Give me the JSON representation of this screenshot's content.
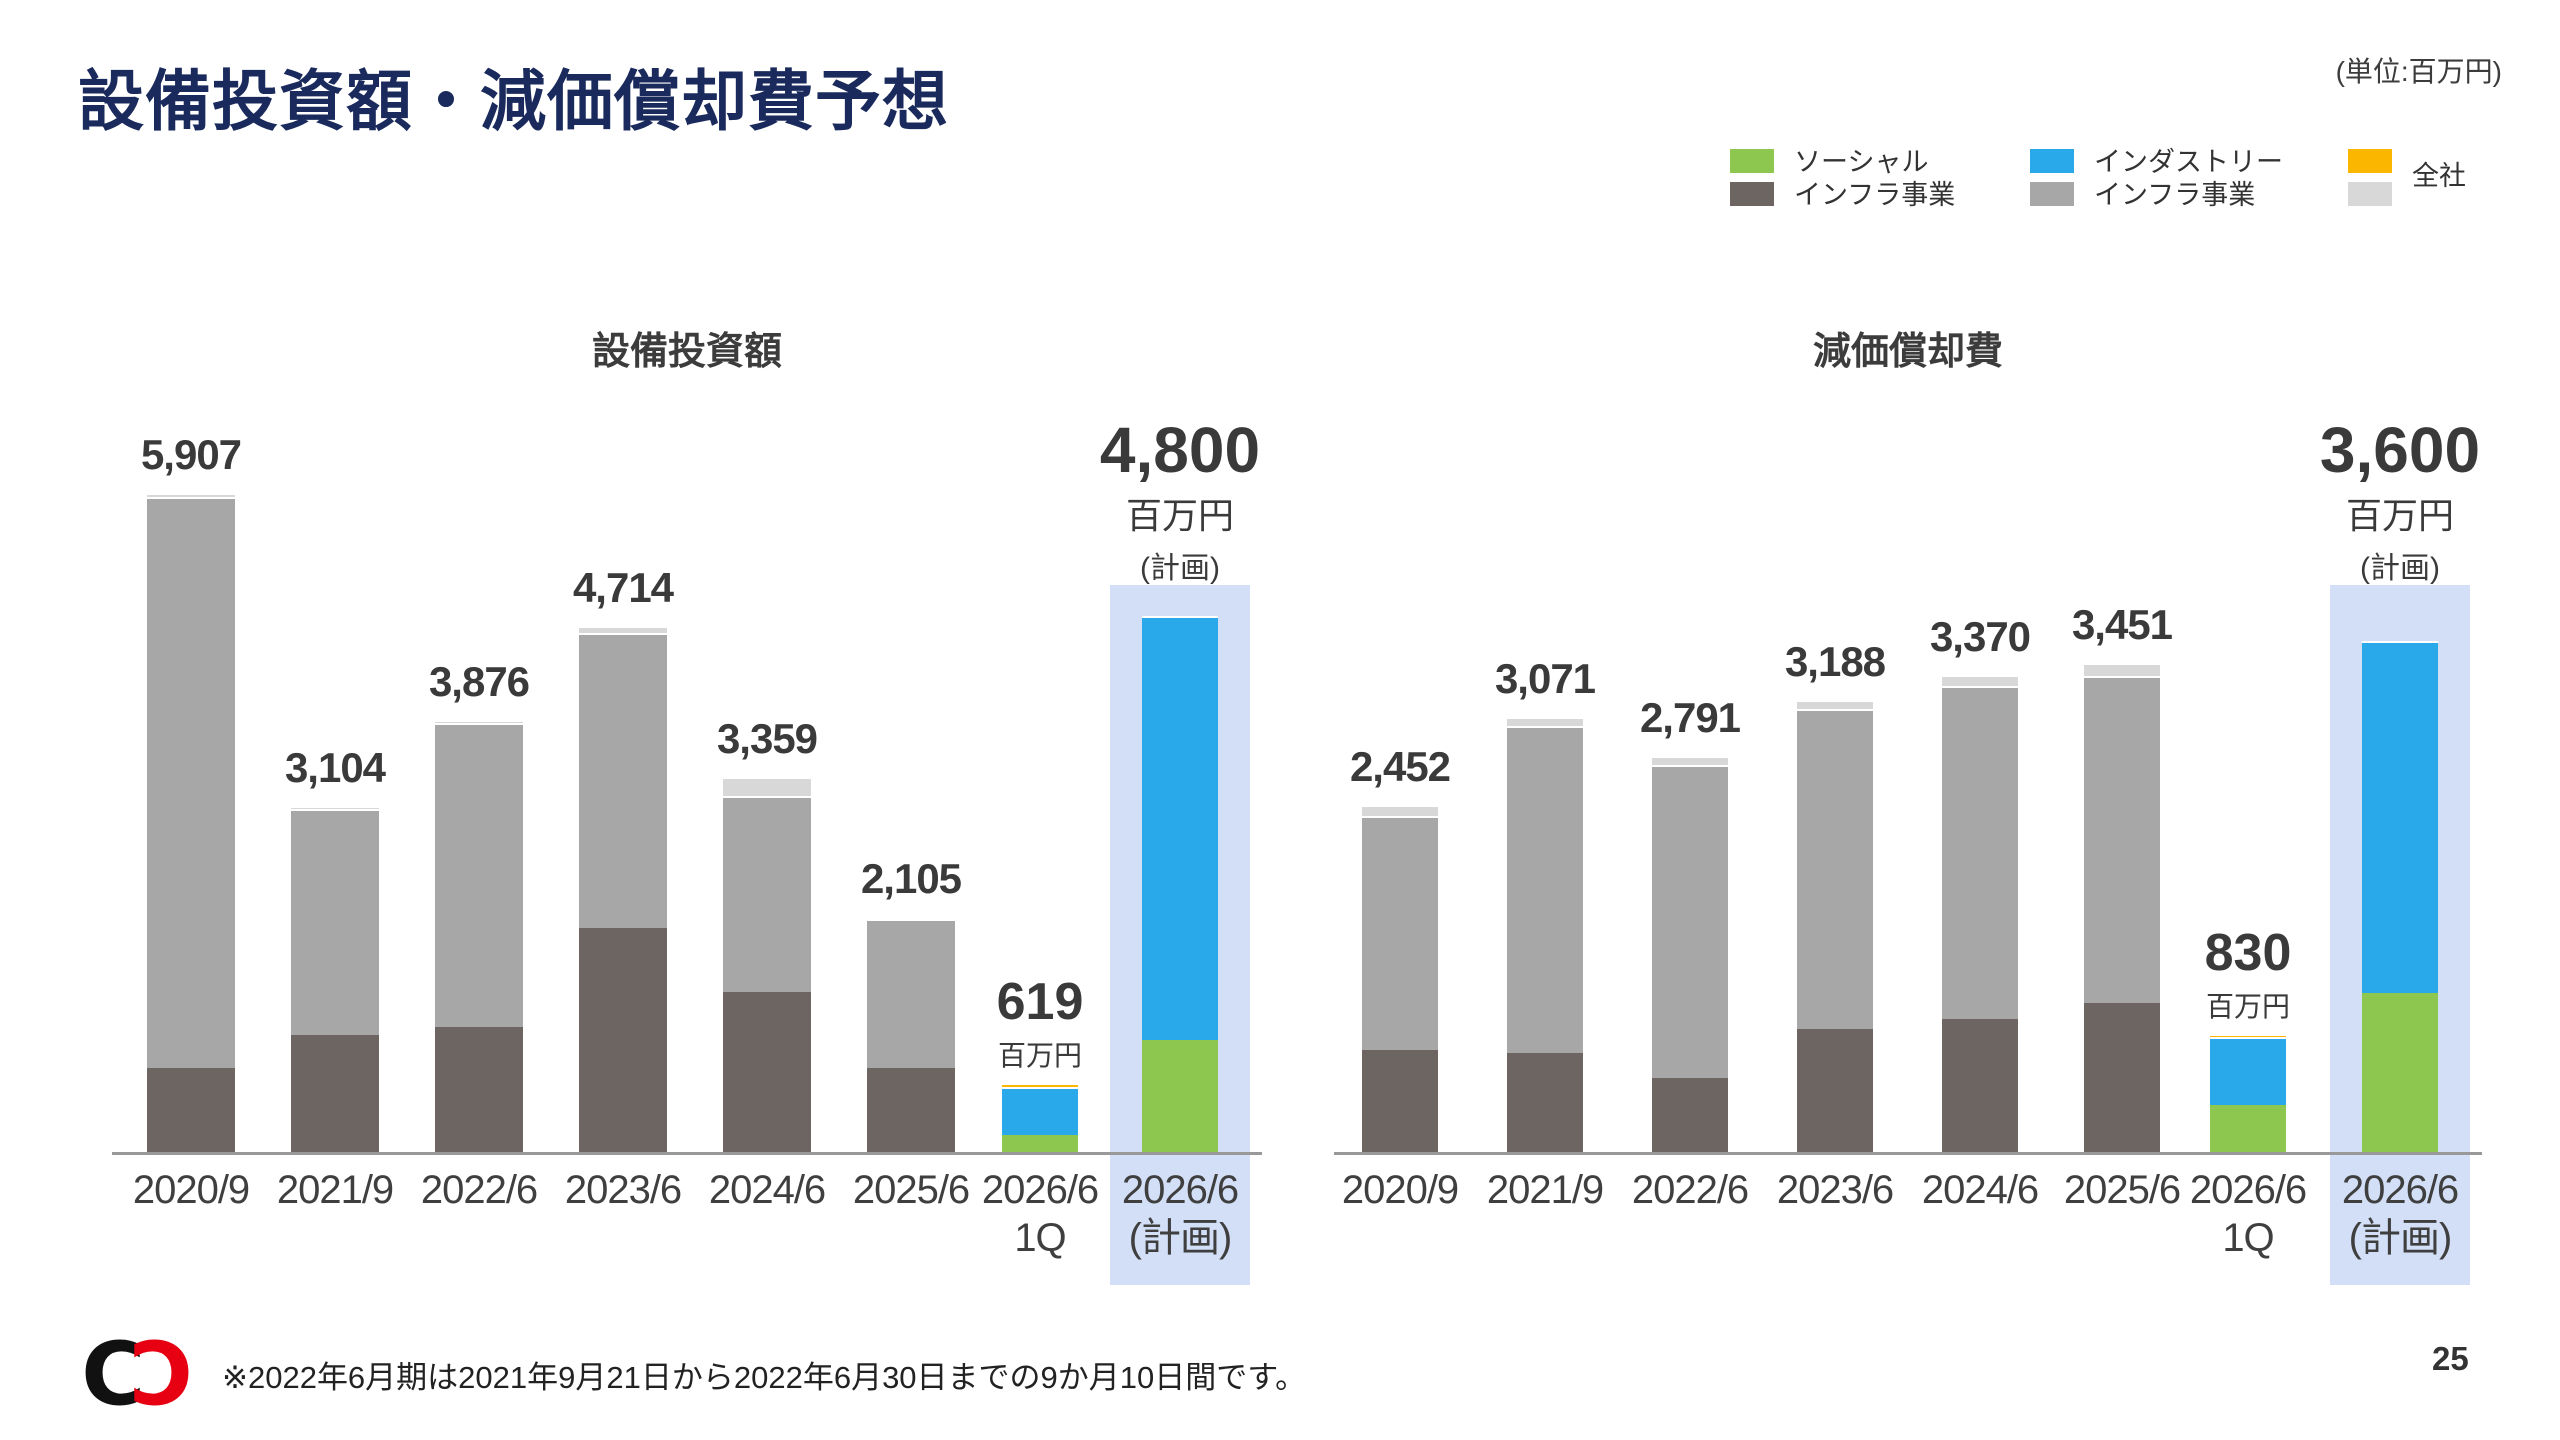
{
  "slide": {
    "title": "設備投資額・減価償却費予想",
    "unit_note": "(単位:百万円)",
    "footnote": "※2022年6月期は2021年9月21日から2022年6月30日までの9か月10日間です。",
    "page_number": "25"
  },
  "legend": {
    "items": [
      {
        "label": "ソーシャル\nインフラ事業",
        "plan_color_key": "social_plan",
        "actual_color_key": "social_actual"
      },
      {
        "label": "インダストリー\nインフラ事業",
        "plan_color_key": "industry_plan",
        "actual_color_key": "industry_actual"
      },
      {
        "label": "全社",
        "plan_color_key": "corporate_plan",
        "actual_color_key": "corporate_actual"
      }
    ]
  },
  "colors": {
    "title_navy": "#1A2A5C",
    "text_dark": "#3A3A3A",
    "social_plan": "#8DC74F",
    "social_actual": "#6D6561",
    "industry_plan": "#29A9EA",
    "industry_actual": "#A8A7A7",
    "corporate_plan": "#FBB700",
    "corporate_actual": "#D8D8D8",
    "plan_highlight": "#D3DFF6",
    "axis": "#999999",
    "logo_red": "#E60012",
    "logo_black": "#111111"
  },
  "chart_data": [
    {
      "type": "bar",
      "stacked": true,
      "title": "設備投資額",
      "unit": "百万円",
      "grid": false,
      "legend_position": "top-right-shared",
      "categories": [
        "2020/9",
        "2021/9",
        "2022/6",
        "2023/6",
        "2024/6",
        "2025/6",
        "2026/6\n1Q",
        "2026/6\n(計画)"
      ],
      "bars": [
        {
          "category": "2020/9",
          "kind": "actual",
          "total": 5907,
          "label": "5,907",
          "segments": [
            {
              "series": "ソーシャルインフラ事業",
              "color": "social_actual",
              "value": 750
            },
            {
              "series": "インダストリーインフラ事業",
              "color": "industry_actual",
              "value": 5117
            },
            {
              "series": "全社",
              "color": "corporate_actual",
              "value": 40
            }
          ]
        },
        {
          "category": "2021/9",
          "kind": "actual",
          "total": 3104,
          "label": "3,104",
          "segments": [
            {
              "series": "ソーシャルインフラ事業",
              "color": "social_actual",
              "value": 1050
            },
            {
              "series": "インダストリーインフラ事業",
              "color": "industry_actual",
              "value": 2024
            },
            {
              "series": "全社",
              "color": "corporate_actual",
              "value": 30
            }
          ]
        },
        {
          "category": "2022/6",
          "kind": "actual",
          "total": 3876,
          "label": "3,876",
          "segments": [
            {
              "series": "ソーシャルインフラ事業",
              "color": "social_actual",
              "value": 1120
            },
            {
              "series": "インダストリーインフラ事業",
              "color": "industry_actual",
              "value": 2726
            },
            {
              "series": "全社",
              "color": "corporate_actual",
              "value": 30
            }
          ]
        },
        {
          "category": "2023/6",
          "kind": "actual",
          "total": 4714,
          "label": "4,714",
          "segments": [
            {
              "series": "ソーシャルインフラ事業",
              "color": "social_actual",
              "value": 2010
            },
            {
              "series": "インダストリーインフラ事業",
              "color": "industry_actual",
              "value": 2644
            },
            {
              "series": "全社",
              "color": "corporate_actual",
              "value": 60
            }
          ]
        },
        {
          "category": "2024/6",
          "kind": "actual",
          "total": 3359,
          "label": "3,359",
          "segments": [
            {
              "series": "ソーシャルインフラ事業",
              "color": "social_actual",
              "value": 1430
            },
            {
              "series": "インダストリーインフラ事業",
              "color": "industry_actual",
              "value": 1759
            },
            {
              "series": "全社",
              "color": "corporate_actual",
              "value": 170
            }
          ]
        },
        {
          "category": "2025/6",
          "kind": "actual",
          "total": 2105,
          "label": "2,105",
          "segments": [
            {
              "series": "ソーシャルインフラ事業",
              "color": "social_actual",
              "value": 750
            },
            {
              "series": "インダストリーインフラ事業",
              "color": "industry_actual",
              "value": 1335
            },
            {
              "series": "全社",
              "color": "corporate_actual",
              "value": 20
            }
          ]
        },
        {
          "category": "2026/6\n1Q",
          "kind": "quarter",
          "total": 619,
          "label": "619",
          "annotation": {
            "value": "619",
            "unit": "百万円"
          },
          "segments": [
            {
              "series": "ソーシャルインフラ事業",
              "color": "social_plan",
              "value": 150
            },
            {
              "series": "インダストリーインフラ事業",
              "color": "industry_plan",
              "value": 429
            },
            {
              "series": "全社",
              "color": "corporate_plan",
              "value": 40
            }
          ]
        },
        {
          "category": "2026/6\n(計画)",
          "kind": "plan",
          "total": 4800,
          "label": "4,800",
          "annotation": {
            "value": "4,800",
            "unit": "百万円",
            "note": "(計画)"
          },
          "segments": [
            {
              "series": "ソーシャルインフラ事業",
              "color": "social_plan",
              "value": 1000
            },
            {
              "series": "インダストリーインフラ事業",
              "color": "industry_plan",
              "value": 3800
            }
          ]
        }
      ]
    },
    {
      "type": "bar",
      "stacked": true,
      "title": "減価償却費",
      "unit": "百万円",
      "grid": false,
      "legend_position": "top-right-shared",
      "categories": [
        "2020/9",
        "2021/9",
        "2022/6",
        "2023/6",
        "2024/6",
        "2025/6",
        "2026/6\n1Q",
        "2026/6\n(計画)"
      ],
      "bars": [
        {
          "category": "2020/9",
          "kind": "actual",
          "total": 2452,
          "label": "2,452",
          "segments": [
            {
              "series": "ソーシャルインフラ事業",
              "color": "social_actual",
              "value": 720
            },
            {
              "series": "インダストリーインフラ事業",
              "color": "industry_actual",
              "value": 1652
            },
            {
              "series": "全社",
              "color": "corporate_actual",
              "value": 80
            }
          ]
        },
        {
          "category": "2021/9",
          "kind": "actual",
          "total": 3071,
          "label": "3,071",
          "segments": [
            {
              "series": "ソーシャルインフラ事業",
              "color": "social_actual",
              "value": 700
            },
            {
              "series": "インダストリーインフラ事業",
              "color": "industry_actual",
              "value": 2306
            },
            {
              "series": "全社",
              "color": "corporate_actual",
              "value": 65
            }
          ]
        },
        {
          "category": "2022/6",
          "kind": "actual",
          "total": 2791,
          "label": "2,791",
          "segments": [
            {
              "series": "ソーシャルインフラ事業",
              "color": "social_actual",
              "value": 520
            },
            {
              "series": "インダストリーインフラ事業",
              "color": "industry_actual",
              "value": 2206
            },
            {
              "series": "全社",
              "color": "corporate_actual",
              "value": 65
            }
          ]
        },
        {
          "category": "2023/6",
          "kind": "actual",
          "total": 3188,
          "label": "3,188",
          "segments": [
            {
              "series": "ソーシャルインフラ事業",
              "color": "social_actual",
              "value": 870
            },
            {
              "series": "インダストリーインフラ事業",
              "color": "industry_actual",
              "value": 2253
            },
            {
              "series": "全社",
              "color": "corporate_actual",
              "value": 65
            }
          ]
        },
        {
          "category": "2024/6",
          "kind": "actual",
          "total": 3370,
          "label": "3,370",
          "segments": [
            {
              "series": "ソーシャルインフラ事業",
              "color": "social_actual",
              "value": 940
            },
            {
              "series": "インダストリーインフラ事業",
              "color": "industry_actual",
              "value": 2350
            },
            {
              "series": "全社",
              "color": "corporate_actual",
              "value": 80
            }
          ]
        },
        {
          "category": "2025/6",
          "kind": "actual",
          "total": 3451,
          "label": "3,451",
          "segments": [
            {
              "series": "ソーシャルインフラ事業",
              "color": "social_actual",
              "value": 1050
            },
            {
              "series": "インダストリーインフラ事業",
              "color": "industry_actual",
              "value": 2306
            },
            {
              "series": "全社",
              "color": "corporate_actual",
              "value": 95
            }
          ]
        },
        {
          "category": "2026/6\n1Q",
          "kind": "quarter",
          "total": 830,
          "label": "830",
          "annotation": {
            "value": "830",
            "unit": "百万円"
          },
          "segments": [
            {
              "series": "ソーシャルインフラ事業",
              "color": "social_plan",
              "value": 330
            },
            {
              "series": "インダストリーインフラ事業",
              "color": "industry_plan",
              "value": 480
            },
            {
              "series": "全社",
              "color": "corporate_plan",
              "value": 20
            }
          ]
        },
        {
          "category": "2026/6\n(計画)",
          "kind": "plan",
          "total": 3600,
          "label": "3,600",
          "annotation": {
            "value": "3,600",
            "unit": "百万円",
            "note": "(計画)"
          },
          "segments": [
            {
              "series": "ソーシャルインフラ事業",
              "color": "social_plan",
              "value": 1120
            },
            {
              "series": "インダストリーインフラ事業",
              "color": "industry_plan",
              "value": 2480
            }
          ]
        }
      ]
    }
  ]
}
